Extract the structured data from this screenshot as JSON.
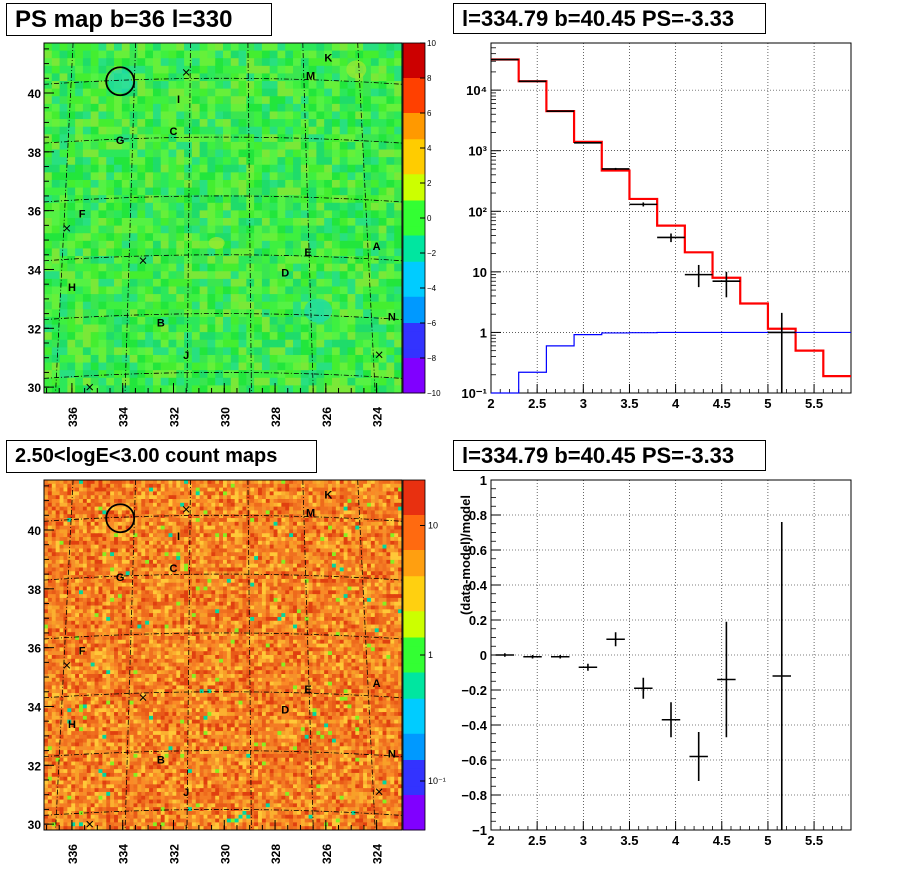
{
  "panels": {
    "top_left_title": "PS map b=36 l=330",
    "top_right_title": "l=334.79 b=40.45 PS=-3.33",
    "bottom_left_title": "2.50<logE<3.00 count maps",
    "bottom_right_title": "l=334.79 b=40.45 PS=-3.33"
  },
  "maps": {
    "x_ticks": [
      "336",
      "334",
      "332",
      "330",
      "328",
      "326",
      "324"
    ],
    "y_ticks": [
      "30",
      "32",
      "34",
      "36",
      "38",
      "40"
    ],
    "sources": [
      {
        "label": "K",
        "l": 325.9,
        "b": 41.2
      },
      {
        "label": "M",
        "l": 326.6,
        "b": 40.6
      },
      {
        "label": "I",
        "l": 331.8,
        "b": 39.8
      },
      {
        "label": "C",
        "l": 332.0,
        "b": 38.7
      },
      {
        "label": "G",
        "l": 334.1,
        "b": 38.4
      },
      {
        "label": "F",
        "l": 335.6,
        "b": 35.9
      },
      {
        "label": "E",
        "l": 326.7,
        "b": 34.6
      },
      {
        "label": "A",
        "l": 324.0,
        "b": 34.8
      },
      {
        "label": "D",
        "l": 327.6,
        "b": 33.9
      },
      {
        "label": "H",
        "l": 336.0,
        "b": 33.4
      },
      {
        "label": "N",
        "l": 323.4,
        "b": 32.4
      },
      {
        "label": "B",
        "l": 332.5,
        "b": 32.2
      },
      {
        "label": "J",
        "l": 331.5,
        "b": 31.1
      }
    ],
    "crosses": [
      {
        "l": 331.5,
        "b": 40.7
      },
      {
        "l": 336.2,
        "b": 35.4
      },
      {
        "l": 333.2,
        "b": 34.3
      },
      {
        "l": 323.9,
        "b": 31.1
      },
      {
        "l": 335.3,
        "b": 30.0
      }
    ],
    "circle": {
      "l": 334.1,
      "b": 40.4
    }
  },
  "ps_colorbar": {
    "ticks": [
      "10",
      "8",
      "6",
      "4",
      "2",
      "0",
      "−2",
      "−4",
      "−6",
      "−8",
      "−10"
    ],
    "colors": [
      "#cc0000",
      "#ff4000",
      "#ff9900",
      "#ffcc00",
      "#ccff00",
      "#33ff33",
      "#00e6a0",
      "#00ccff",
      "#0099ff",
      "#3333ff",
      "#8000ff"
    ]
  },
  "count_colorbar": {
    "ticks": [
      "10",
      "1",
      "10⁻¹"
    ],
    "colors": [
      "#e83010",
      "#ff6a10",
      "#ff9f10",
      "#ffd010",
      "#ccff00",
      "#33ff33",
      "#00e6a0",
      "#00ccff",
      "#0099ff",
      "#3333ff",
      "#8000ff"
    ]
  },
  "chart_data": [
    {
      "type": "line",
      "title": "l=334.79 b=40.45 PS=-3.33",
      "xlim": [
        2,
        5.9
      ],
      "ylim": [
        0.1,
        60000
      ],
      "yscale": "log",
      "grid": true,
      "x_tick_labels": [
        "2",
        "2.5",
        "3",
        "3.5",
        "4",
        "4.5",
        "5",
        "5.5"
      ],
      "y_tick_labels": [
        "10⁻¹",
        "1",
        "10",
        "10²",
        "10³",
        "10⁴"
      ],
      "series": [
        {
          "color": "#ff0000",
          "step_edges": [
            2.0,
            2.3,
            2.6,
            2.9,
            3.2,
            3.5,
            3.8,
            4.1,
            4.4,
            4.7,
            5.0,
            5.3,
            5.6,
            5.9
          ],
          "values": [
            32000,
            14000,
            4500,
            1400,
            470,
            160,
            58,
            21,
            8,
            3,
            1.15,
            0.5,
            0.19
          ]
        },
        {
          "color": "#0000ff",
          "step_edges": [
            2.0,
            2.3,
            2.6,
            2.9,
            3.2,
            3.5,
            3.8,
            4.1,
            4.4,
            4.7,
            5.0,
            5.3,
            5.6,
            5.9
          ],
          "values": [
            0.1,
            0.22,
            0.6,
            0.92,
            0.98,
            0.99,
            1.0,
            1.0,
            1.0,
            1.0,
            1.0,
            1.0,
            1.0
          ]
        },
        {
          "color": "#000000",
          "points": [
            {
              "x": 2.15,
              "y": 32000,
              "xerr": 0.15,
              "ylo": 31800,
              "yhi": 32200
            },
            {
              "x": 2.45,
              "y": 14000,
              "xerr": 0.15,
              "ylo": 13900,
              "yhi": 14100
            },
            {
              "x": 2.75,
              "y": 4500,
              "xerr": 0.15,
              "ylo": 4450,
              "yhi": 4550
            },
            {
              "x": 3.05,
              "y": 1350,
              "xerr": 0.15,
              "ylo": 1320,
              "yhi": 1380
            },
            {
              "x": 3.35,
              "y": 500,
              "xerr": 0.15,
              "ylo": 480,
              "yhi": 520
            },
            {
              "x": 3.65,
              "y": 130,
              "xerr": 0.15,
              "ylo": 120,
              "yhi": 140
            },
            {
              "x": 3.95,
              "y": 37,
              "xerr": 0.15,
              "ylo": 31,
              "yhi": 43
            },
            {
              "x": 4.25,
              "y": 9,
              "xerr": 0.15,
              "ylo": 5.6,
              "yhi": 13
            },
            {
              "x": 4.55,
              "y": 7,
              "xerr": 0.15,
              "ylo": 3.8,
              "yhi": 10
            },
            {
              "x": 5.15,
              "y": 1.0,
              "xerr": 0.15,
              "ylo": 0.1,
              "yhi": 2.1
            }
          ]
        }
      ]
    },
    {
      "type": "scatter",
      "title": "l=334.79 b=40.45 PS=-3.33",
      "ylabel": "(data-model)/model",
      "xlim": [
        2,
        5.9
      ],
      "ylim": [
        -1,
        1
      ],
      "grid": true,
      "x_tick_labels": [
        "2",
        "2.5",
        "3",
        "3.5",
        "4",
        "4.5",
        "5",
        "5.5"
      ],
      "y_tick_labels": [
        "−1",
        "−0.8",
        "−0.6",
        "−0.4",
        "−0.2",
        "0",
        "0.2",
        "0.4",
        "0.6",
        "0.8",
        "1"
      ],
      "points": [
        {
          "x": 2.15,
          "y": 0.0,
          "xerr": 0.15,
          "yerr": 0.01
        },
        {
          "x": 2.45,
          "y": -0.01,
          "xerr": 0.15,
          "yerr": 0.01
        },
        {
          "x": 2.75,
          "y": -0.01,
          "xerr": 0.15,
          "yerr": 0.01
        },
        {
          "x": 3.05,
          "y": -0.07,
          "xerr": 0.15,
          "yerr": 0.02
        },
        {
          "x": 3.35,
          "y": 0.09,
          "xerr": 0.15,
          "yerr": 0.04
        },
        {
          "x": 3.65,
          "y": -0.19,
          "xerr": 0.15,
          "yerr": 0.06
        },
        {
          "x": 3.95,
          "y": -0.37,
          "xerr": 0.15,
          "yerr": 0.1
        },
        {
          "x": 4.25,
          "y": -0.58,
          "xerr": 0.15,
          "yerr": 0.14
        },
        {
          "x": 4.55,
          "y": -0.14,
          "xerr": 0.15,
          "yerr": 0.33
        },
        {
          "x": 5.15,
          "y": -0.12,
          "xerr": 0.15,
          "yerr": 0.88
        }
      ]
    }
  ]
}
